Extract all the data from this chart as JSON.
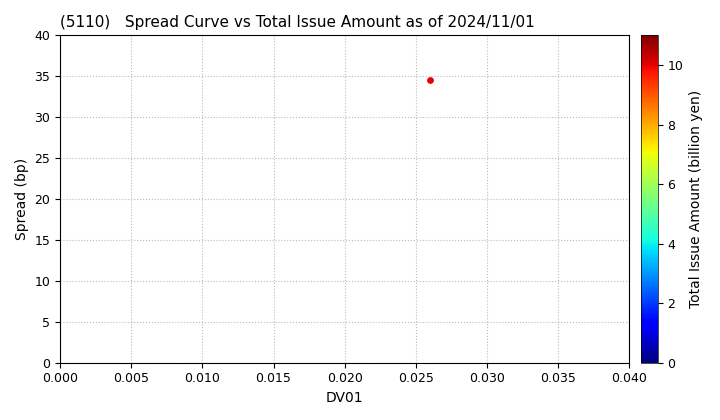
{
  "title": "(5110)   Spread Curve vs Total Issue Amount as of 2024/11/01",
  "xlabel": "DV01",
  "ylabel": "Spread (bp)",
  "xlim": [
    0.0,
    0.04
  ],
  "ylim": [
    0.0,
    40.0
  ],
  "xticks": [
    0.0,
    0.005,
    0.01,
    0.015,
    0.02,
    0.025,
    0.03,
    0.035,
    0.04
  ],
  "yticks": [
    0,
    5,
    10,
    15,
    20,
    25,
    30,
    35,
    40
  ],
  "scatter_x": [
    0.026
  ],
  "scatter_y": [
    34.5
  ],
  "scatter_value": [
    10.0
  ],
  "colorbar_label": "Total Issue Amount (billion yen)",
  "colorbar_ticks": [
    0,
    2,
    4,
    6,
    8,
    10
  ],
  "cmap": "jet",
  "vmin": 0,
  "vmax": 11,
  "grid_color": "#bbbbbb",
  "grid_style": "dotted",
  "background_color": "#ffffff",
  "title_fontsize": 11,
  "title_fontweight": "normal",
  "axis_label_fontsize": 10,
  "tick_fontsize": 9
}
